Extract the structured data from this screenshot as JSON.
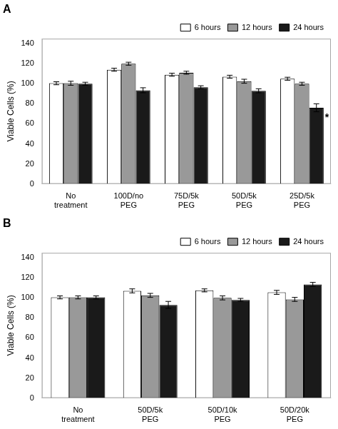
{
  "chart_data": [
    {
      "type": "bar",
      "title": "A",
      "ylabel": "Viable Cells (%)",
      "categories": [
        "No\ntreatment",
        "100D/no\nPEG",
        "75D/5k\nPEG",
        "50D/5k\nPEG",
        "25D/5k\nPEG"
      ],
      "series": [
        {
          "name": "6 hours",
          "color": "#ffffff",
          "values": [
            100.5,
            114.0,
            109.0,
            107.0,
            105.0
          ],
          "errors": [
            1.5,
            1.5,
            1.5,
            1.5,
            1.5
          ]
        },
        {
          "name": "12 hours",
          "color": "#999999",
          "values": [
            100.5,
            120.0,
            111.0,
            102.5,
            100.0
          ],
          "errors": [
            2.0,
            1.5,
            1.5,
            2.0,
            1.5
          ]
        },
        {
          "name": "24 hours",
          "color": "#1a1a1a",
          "values": [
            100.0,
            93.5,
            96.5,
            93.0,
            76.0
          ],
          "errors": [
            1.5,
            2.5,
            1.5,
            2.0,
            4.0
          ]
        }
      ],
      "annotations": [
        {
          "text": "*",
          "category": "25D/5k\nPEG",
          "series": "24 hours"
        }
      ],
      "ylim": [
        0,
        145
      ],
      "yticks": [
        0,
        20,
        40,
        60,
        80,
        100,
        120,
        140
      ],
      "grid": false,
      "legend": "upper right"
    },
    {
      "type": "bar",
      "title": "B",
      "ylabel": "Viable Cells (%)",
      "categories": [
        "No\ntreatment",
        "50D/5k\nPEG",
        "50D/10k\nPEG",
        "50D/20k\nPEG"
      ],
      "series": [
        {
          "name": "6 hours",
          "color": "#ffffff",
          "values": [
            100.5,
            107.0,
            107.5,
            105.5
          ],
          "errors": [
            1.5,
            2.0,
            1.5,
            2.0
          ]
        },
        {
          "name": "12 hours",
          "color": "#999999",
          "values": [
            100.5,
            102.5,
            100.0,
            98.5
          ],
          "errors": [
            1.5,
            2.0,
            2.0,
            2.0
          ]
        },
        {
          "name": "24 hours",
          "color": "#1a1a1a",
          "values": [
            100.5,
            93.0,
            98.0,
            113.5
          ],
          "errors": [
            1.5,
            3.5,
            1.5,
            2.0
          ]
        }
      ],
      "ylim": [
        0,
        145
      ],
      "yticks": [
        0,
        20,
        40,
        60,
        80,
        100,
        120,
        140
      ],
      "grid": false,
      "legend": "upper right"
    }
  ]
}
